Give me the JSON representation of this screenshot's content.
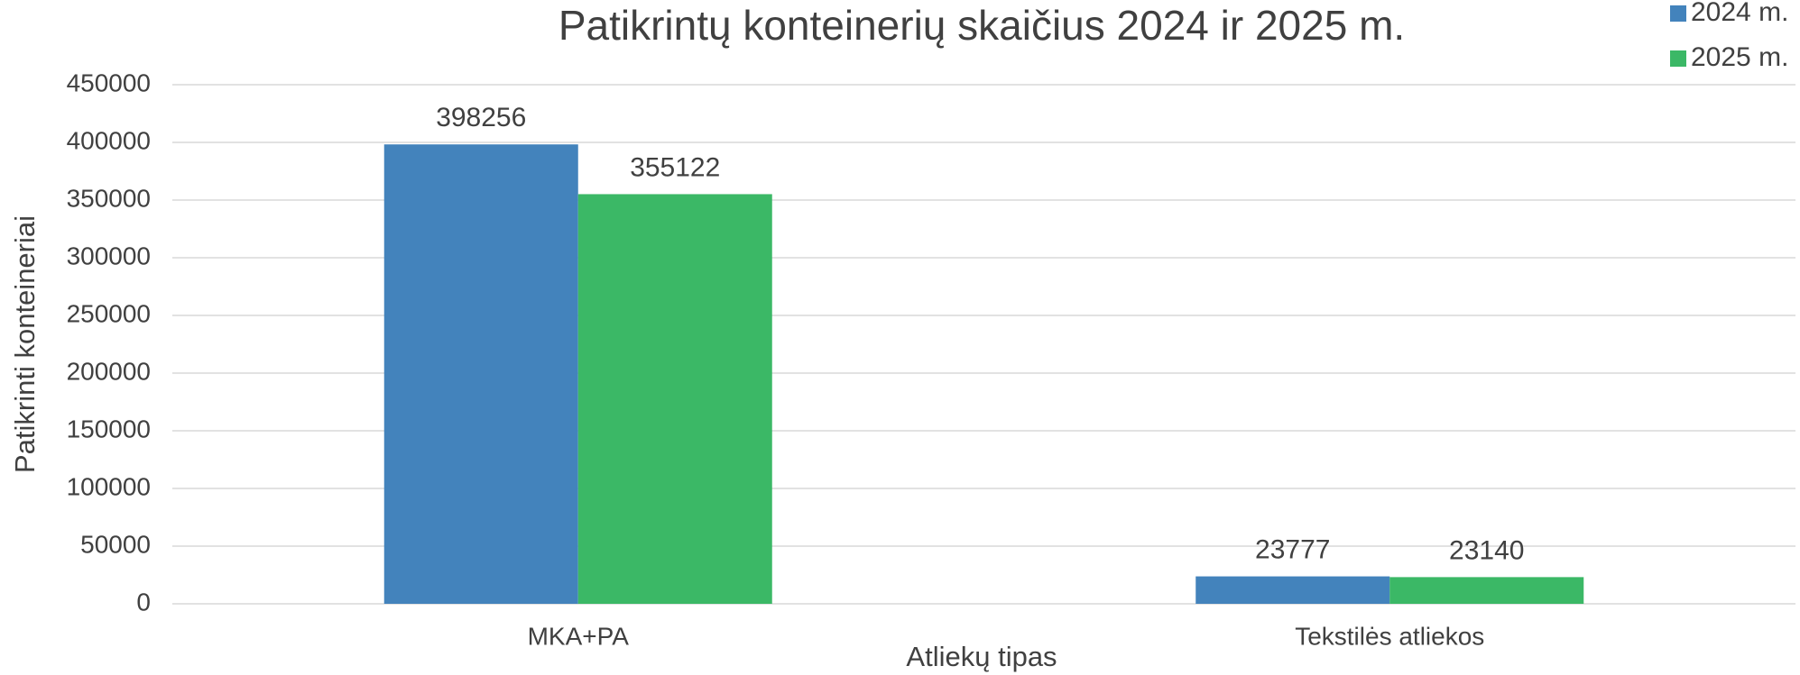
{
  "chart_data": {
    "type": "bar",
    "title": "Patikrintų konteinerių skaičius 2024 ir 2025 m.",
    "x_label": "Atliekų tipas",
    "y_label": "Patikrinti konteineriai",
    "categories": [
      "MKA+PA",
      "Tekstilės atliekos"
    ],
    "series": [
      {
        "name": "2024 m.",
        "color": "#4383bc",
        "values": [
          398256,
          23777
        ]
      },
      {
        "name": "2025 m.",
        "color": "#3bb866",
        "values": [
          355122,
          23140
        ]
      }
    ],
    "ylim": [
      0,
      450000
    ],
    "yticks": [
      0,
      50000,
      100000,
      150000,
      200000,
      250000,
      300000,
      350000,
      400000,
      450000
    ],
    "grid": true,
    "legend": "top-right"
  }
}
